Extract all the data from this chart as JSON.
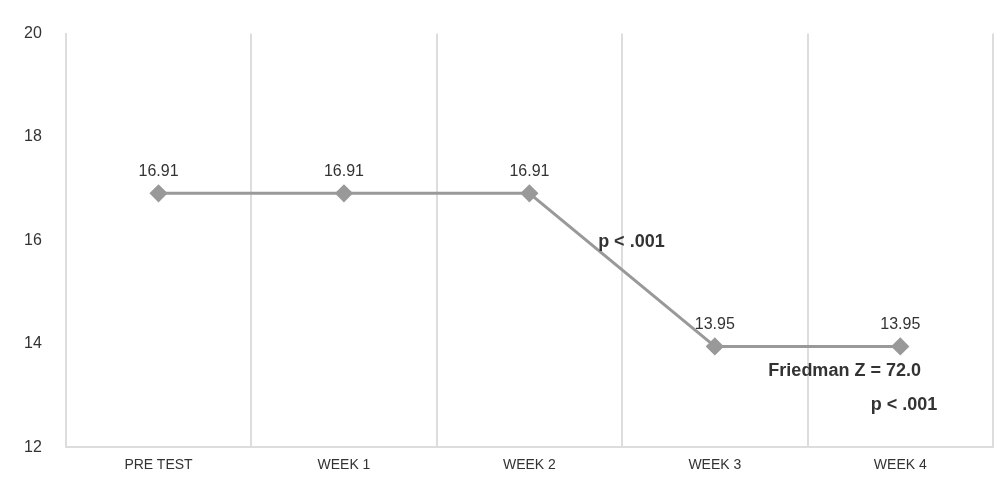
{
  "chart_data": {
    "type": "line",
    "categories": [
      "PRE TEST",
      "WEEK 1",
      "WEEK 2",
      "WEEK 3",
      "WEEK 4"
    ],
    "series": [
      {
        "color": "#999999",
        "values": [
          16.91,
          16.91,
          16.91,
          13.95,
          13.95
        ]
      }
    ],
    "ylim": [
      12,
      20
    ],
    "yticks": [
      12,
      14,
      16,
      18,
      20
    ],
    "grid": "x",
    "legend": false,
    "marker": "diamond",
    "line_style": "solid",
    "data_labels": true,
    "annotations": [
      "p < .001",
      "Friedman Z = 72.0",
      "p < .001"
    ]
  }
}
